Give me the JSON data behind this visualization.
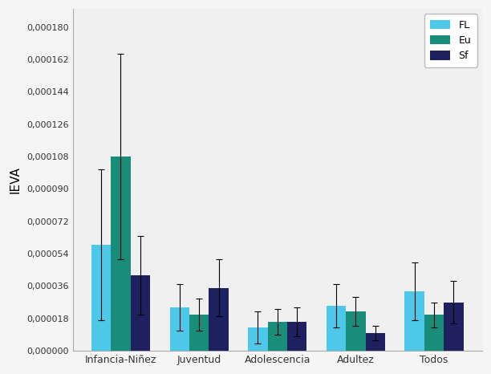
{
  "categories": [
    "Infancia-Niñez",
    "Juventud",
    "Adolescencia",
    "Adultez",
    "Todos"
  ],
  "series": {
    "FL": {
      "values": [
        5.9e-05,
        2.4e-05,
        1.3e-05,
        2.5e-05,
        3.3e-05
      ],
      "errors": [
        4.2e-05,
        1.3e-05,
        9e-06,
        1.2e-05,
        1.6e-05
      ],
      "color": "#4DC8E8"
    },
    "Eu": {
      "values": [
        0.000108,
        2e-05,
        1.6e-05,
        2.2e-05,
        2e-05
      ],
      "errors": [
        5.7e-05,
        9e-06,
        7e-06,
        8e-06,
        7e-06
      ],
      "color": "#1A8C7A"
    },
    "Sf": {
      "values": [
        4.2e-05,
        3.5e-05,
        1.6e-05,
        1e-05,
        2.7e-05
      ],
      "errors": [
        2.2e-05,
        1.6e-05,
        8e-06,
        4e-06,
        1.2e-05
      ],
      "color": "#1E2060"
    }
  },
  "ylabel": "IEVA",
  "ylim": [
    0,
    0.00019
  ],
  "yticks": [
    0.0,
    1.8e-05,
    3.6e-05,
    5.4e-05,
    7.2e-05,
    9e-05,
    0.000108,
    0.000126,
    0.000144,
    0.000162,
    0.00018
  ],
  "legend_labels": [
    "FL",
    "Eu",
    "Sf"
  ],
  "bar_width": 0.25,
  "figsize": [
    6.12,
    4.66
  ],
  "dpi": 100,
  "bg_color": "#F5F5F5",
  "plot_bg_color": "#F0F0F0"
}
